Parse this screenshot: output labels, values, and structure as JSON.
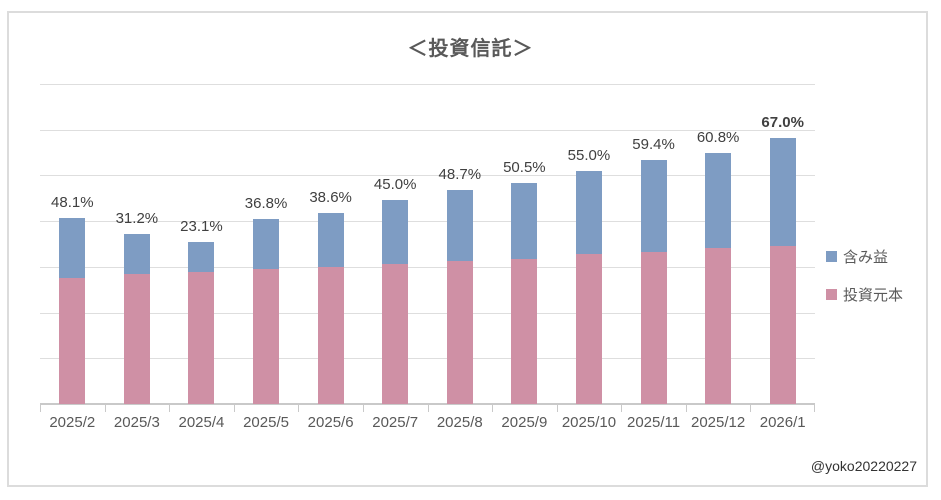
{
  "footer": "@yoko20220227",
  "colors": {
    "gain": "#7e9cc3",
    "principal": "#cf90a5",
    "grid": "#dedede",
    "axis": "#c9c9c9",
    "title_text": "#595959",
    "label_text": "#404040",
    "axis_text": "#595959",
    "frame_border": "#dcdcdc"
  },
  "chart_data": {
    "type": "bar",
    "stacked": true,
    "title": "＜投資信託＞",
    "categories": [
      "2025/2",
      "2025/3",
      "2025/4",
      "2025/5",
      "2025/6",
      "2025/7",
      "2025/8",
      "2025/9",
      "2025/10",
      "2025/11",
      "2025/12",
      "2026/1"
    ],
    "series": [
      {
        "name": "投資元本",
        "color": "#cf90a5",
        "values": [
          126,
          130,
          132,
          135,
          137,
          140,
          143,
          145,
          150,
          152,
          156,
          158
        ]
      },
      {
        "name": "含み益",
        "color": "#7e9cc3",
        "values": [
          60,
          40,
          30,
          50,
          54,
          64,
          71,
          76,
          83,
          92,
          95,
          108
        ]
      }
    ],
    "data_labels": [
      "48.1%",
      "31.2%",
      "23.1%",
      "36.8%",
      "38.6%",
      "45.0%",
      "48.7%",
      "50.5%",
      "55.0%",
      "59.4%",
      "60.8%",
      "67.0%"
    ],
    "data_label_bold": [
      false,
      false,
      false,
      false,
      false,
      false,
      false,
      false,
      false,
      false,
      false,
      true
    ],
    "values_unit": "relative",
    "ylim": [
      0,
      320
    ],
    "y_axis_labels_visible": false,
    "y_gridline_intervals": 7,
    "xlabel": "",
    "ylabel": "",
    "legend_position": "right",
    "legend_items": [
      "含み益",
      "投資元本"
    ]
  }
}
